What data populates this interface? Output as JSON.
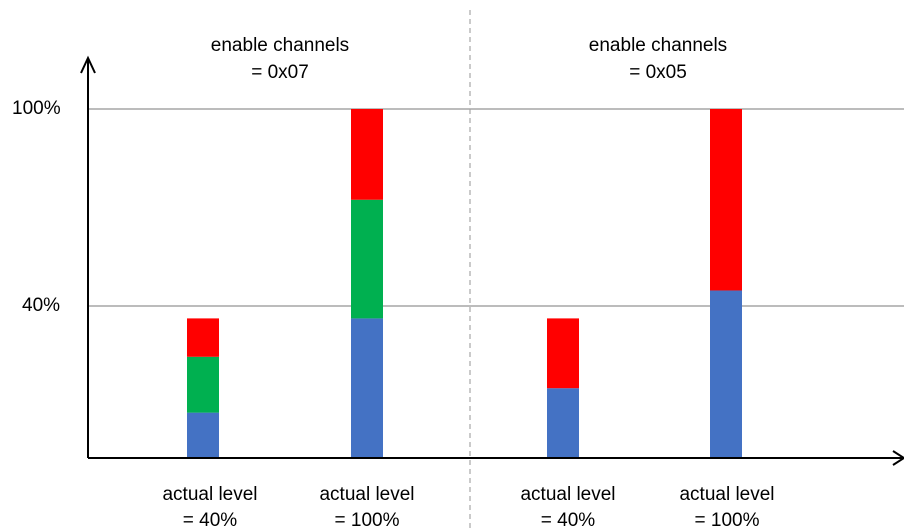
{
  "chart_data": {
    "type": "bar",
    "stacked": true,
    "y_tick_labels": [
      "100%",
      "40%"
    ],
    "y_ticks": [
      100,
      40
    ],
    "ylim": [
      0,
      100
    ],
    "colors": {
      "blue": "#4472C4",
      "green": "#00B050",
      "red": "#FF0000"
    },
    "groups": [
      {
        "title_line1": "enable channels",
        "title_line2": "= 0x07",
        "bars": [
          {
            "label_line1": "actual level",
            "label_line2": "= 40%",
            "segments": [
              {
                "color": "blue",
                "value": 13
              },
              {
                "color": "green",
                "value": 16
              },
              {
                "color": "red",
                "value": 11
              }
            ]
          },
          {
            "label_line1": "actual level",
            "label_line2": "= 100%",
            "segments": [
              {
                "color": "blue",
                "value": 40
              },
              {
                "color": "green",
                "value": 34
              },
              {
                "color": "red",
                "value": 26
              }
            ]
          }
        ]
      },
      {
        "title_line1": "enable channels",
        "title_line2": "= 0x05",
        "bars": [
          {
            "label_line1": "actual level",
            "label_line2": "= 40%",
            "segments": [
              {
                "color": "blue",
                "value": 20
              },
              {
                "color": "red",
                "value": 20
              }
            ]
          },
          {
            "label_line1": "actual level",
            "label_line2": "= 100%",
            "segments": [
              {
                "color": "blue",
                "value": 48
              },
              {
                "color": "red",
                "value": 52
              }
            ]
          }
        ]
      }
    ]
  }
}
